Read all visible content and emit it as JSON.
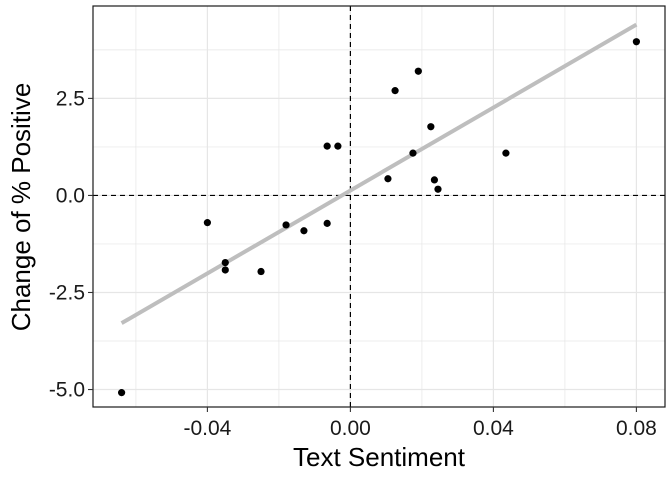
{
  "chart_data": {
    "type": "scatter",
    "title": "",
    "xlabel": "Text Sentiment",
    "ylabel": "Change of % Positive",
    "xlim": [
      -0.072,
      0.088
    ],
    "ylim": [
      -5.45,
      4.88
    ],
    "x_ticks": [
      -0.04,
      0.0,
      0.04,
      0.08
    ],
    "x_tick_labels": [
      "-0.04",
      "0.00",
      "0.04",
      "0.08"
    ],
    "y_ticks": [
      -5.0,
      -2.5,
      0.0,
      2.5
    ],
    "y_tick_labels": [
      "-5.0",
      "-2.5",
      "0.0",
      "2.5"
    ],
    "grid": true,
    "reference_lines": {
      "x": 0,
      "y": 0,
      "style": "dashed"
    },
    "points": [
      {
        "x": -0.064,
        "y": -5.08
      },
      {
        "x": -0.04,
        "y": -0.7
      },
      {
        "x": -0.035,
        "y": -1.73
      },
      {
        "x": -0.035,
        "y": -1.92
      },
      {
        "x": -0.025,
        "y": -1.96
      },
      {
        "x": -0.018,
        "y": -0.76
      },
      {
        "x": -0.013,
        "y": -0.91
      },
      {
        "x": -0.0065,
        "y": -0.72
      },
      {
        "x": -0.0065,
        "y": 1.27
      },
      {
        "x": -0.0035,
        "y": 1.27
      },
      {
        "x": 0.0105,
        "y": 0.43
      },
      {
        "x": 0.0125,
        "y": 2.7
      },
      {
        "x": 0.0175,
        "y": 1.09
      },
      {
        "x": 0.019,
        "y": 3.2
      },
      {
        "x": 0.0225,
        "y": 1.77
      },
      {
        "x": 0.0235,
        "y": 0.4
      },
      {
        "x": 0.0245,
        "y": 0.16
      },
      {
        "x": 0.0435,
        "y": 1.09
      },
      {
        "x": 0.08,
        "y": 3.96
      }
    ],
    "fit_line": {
      "x": [
        -0.064,
        0.08
      ],
      "y": [
        -3.29,
        4.4
      ]
    },
    "colors": {
      "points": "#000000",
      "fit_line": "#bebebe",
      "grid": "#e6e6e6",
      "reference": "#000000"
    }
  }
}
